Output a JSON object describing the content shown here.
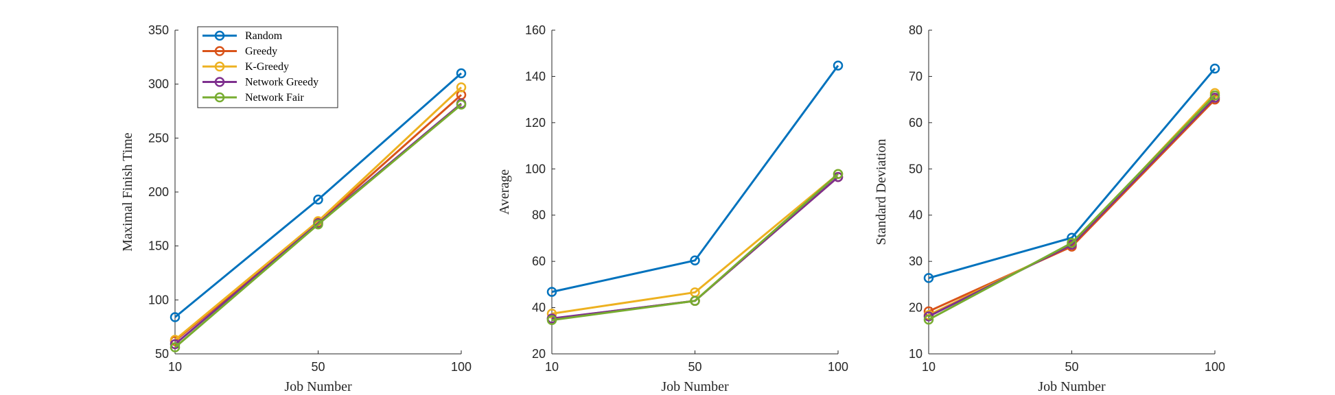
{
  "chart_data": [
    {
      "type": "line",
      "categories": [
        "10",
        "50",
        "100"
      ],
      "xlabel": "Job Number",
      "ylabel": "Maximal Finish Time",
      "ylim": [
        50,
        350
      ],
      "yticks": [
        "50",
        "100",
        "150",
        "200",
        "250",
        "300",
        "350"
      ],
      "legend": "top-left",
      "grid": false,
      "series": [
        {
          "name": "Random",
          "values": [
            84,
            193,
            310
          ]
        },
        {
          "name": "Greedy",
          "values": [
            62,
            172,
            290
          ]
        },
        {
          "name": "K-Greedy",
          "values": [
            63,
            173,
            297
          ]
        },
        {
          "name": "Network Greedy",
          "values": [
            59,
            171,
            282
          ]
        },
        {
          "name": "Network Fair",
          "values": [
            56,
            170,
            281
          ]
        }
      ]
    },
    {
      "type": "line",
      "categories": [
        "10",
        "50",
        "100"
      ],
      "xlabel": "Job Number",
      "ylabel": "Average",
      "ylim": [
        20,
        160
      ],
      "yticks": [
        "20",
        "40",
        "60",
        "80",
        "100",
        "120",
        "140",
        "160"
      ],
      "grid": false,
      "series": [
        {
          "values": [
            46.8,
            60.4,
            144.7
          ]
        },
        {
          "values": [
            35.2,
            42.9,
            96.5
          ]
        },
        {
          "values": [
            37.4,
            46.6,
            97.8
          ]
        },
        {
          "values": [
            35.3,
            42.9,
            96.5
          ]
        },
        {
          "values": [
            34.6,
            42.9,
            97.8
          ]
        }
      ]
    },
    {
      "type": "line",
      "categories": [
        "10",
        "50",
        "100"
      ],
      "xlabel": "Job Number",
      "ylabel": "Standard Deviation",
      "ylim": [
        10,
        80
      ],
      "yticks": [
        "10",
        "20",
        "30",
        "40",
        "50",
        "60",
        "70",
        "80"
      ],
      "grid": false,
      "series": [
        {
          "values": [
            26.4,
            35.1,
            71.7
          ]
        },
        {
          "values": [
            19.2,
            33.2,
            65.0
          ]
        },
        {
          "values": [
            18.4,
            33.6,
            66.4
          ]
        },
        {
          "values": [
            18.1,
            33.6,
            65.4
          ]
        },
        {
          "values": [
            17.4,
            34.0,
            65.9
          ]
        }
      ]
    }
  ],
  "colors": {
    "series": [
      "#0072BD",
      "#D95319",
      "#EDB120",
      "#7E2F8E",
      "#77AC30"
    ],
    "axis": "#262626"
  }
}
